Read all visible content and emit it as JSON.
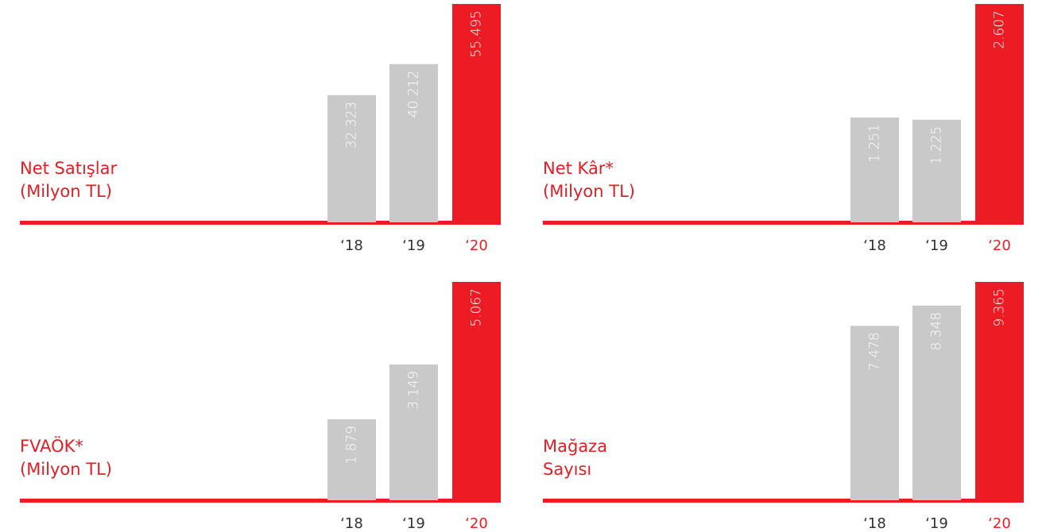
{
  "chart_data": [
    {
      "type": "bar",
      "title": [
        "Net Satışlar",
        "(Milyon TL)"
      ],
      "categories": [
        "‘18",
        "‘19",
        "‘20"
      ],
      "values": [
        32323,
        40212,
        55495
      ],
      "value_labels": [
        "32.323",
        "40.212",
        "55.495"
      ],
      "colors": [
        "#c9c9c9",
        "#c9c9c9",
        "#ed1c24"
      ],
      "category_colors": [
        "#333333",
        "#333333",
        "#ed1c24"
      ]
    },
    {
      "type": "bar",
      "title": [
        "Net Kâr*",
        "(Milyon TL)"
      ],
      "categories": [
        "‘18",
        "‘19",
        "‘20"
      ],
      "values": [
        1251,
        1225,
        2607
      ],
      "value_labels": [
        "1.251",
        "1.225",
        "2.607"
      ],
      "colors": [
        "#c9c9c9",
        "#c9c9c9",
        "#ed1c24"
      ],
      "category_colors": [
        "#333333",
        "#333333",
        "#ed1c24"
      ]
    },
    {
      "type": "bar",
      "title": [
        "FVAÖK*",
        "(Milyon TL)"
      ],
      "categories": [
        "‘18",
        "‘19",
        "‘20"
      ],
      "values": [
        1879,
        3149,
        5067
      ],
      "value_labels": [
        "1.879",
        "3.149",
        "5.067"
      ],
      "colors": [
        "#c9c9c9",
        "#c9c9c9",
        "#ed1c24"
      ],
      "category_colors": [
        "#333333",
        "#333333",
        "#ed1c24"
      ]
    },
    {
      "type": "bar",
      "title": [
        "Mağaza",
        "Sayısı"
      ],
      "categories": [
        "‘18",
        "‘19",
        "‘20"
      ],
      "values": [
        7478,
        8348,
        9365
      ],
      "value_labels": [
        "7.478",
        "8.348",
        "9.365"
      ],
      "colors": [
        "#c9c9c9",
        "#c9c9c9",
        "#ed1c24"
      ],
      "category_colors": [
        "#333333",
        "#333333",
        "#ed1c24"
      ]
    }
  ]
}
